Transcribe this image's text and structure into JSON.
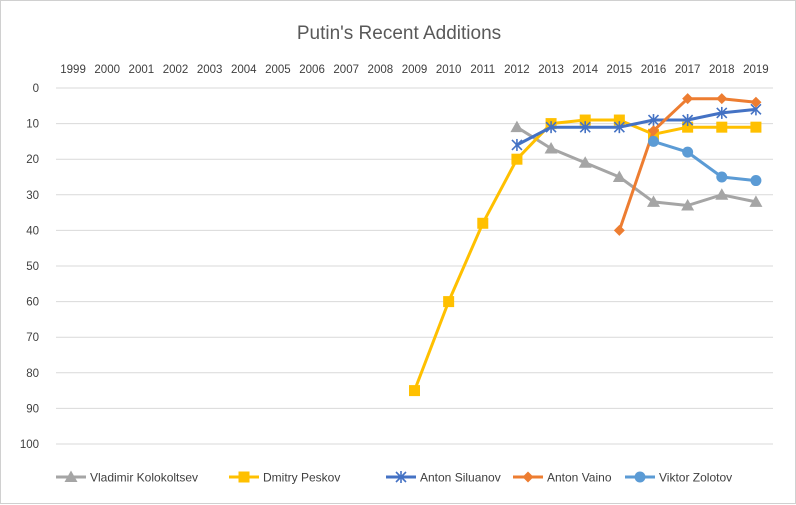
{
  "chart_data": {
    "type": "line",
    "title": "Putin's Recent Additions",
    "x": [
      "1999",
      "2000",
      "2001",
      "2002",
      "2003",
      "2004",
      "2005",
      "2006",
      "2007",
      "2008",
      "2009",
      "2010",
      "2011",
      "2012",
      "2013",
      "2014",
      "2015",
      "2016",
      "2017",
      "2018",
      "2019"
    ],
    "ylim": [
      0,
      100
    ],
    "y_reversed": true,
    "y_ticks": [
      "0",
      "10",
      "20",
      "30",
      "40",
      "50",
      "60",
      "70",
      "80",
      "90",
      "100"
    ],
    "x_axis_position": "top",
    "grid": true,
    "legend_position": "bottom",
    "series": [
      {
        "name": "Vladimir Kolokoltsev",
        "color": "#a5a5a5",
        "marker": "triangle",
        "values": [
          null,
          null,
          null,
          null,
          null,
          null,
          null,
          null,
          null,
          null,
          null,
          null,
          null,
          11,
          17,
          21,
          25,
          32,
          33,
          30,
          32
        ]
      },
      {
        "name": "Dmitry Peskov",
        "color": "#ffc000",
        "marker": "square",
        "values": [
          null,
          null,
          null,
          null,
          null,
          null,
          null,
          null,
          null,
          null,
          85,
          60,
          38,
          20,
          10,
          9,
          9,
          13,
          11,
          11,
          11
        ]
      },
      {
        "name": "Anton Siluanov",
        "color": "#4472c4",
        "marker": "star",
        "values": [
          null,
          null,
          null,
          null,
          null,
          null,
          null,
          null,
          null,
          null,
          null,
          null,
          null,
          16,
          11,
          11,
          11,
          9,
          9,
          7,
          6
        ]
      },
      {
        "name": "Anton Vaino",
        "color": "#ed7d31",
        "marker": "diamond",
        "values": [
          null,
          null,
          null,
          null,
          null,
          null,
          null,
          null,
          null,
          null,
          null,
          null,
          null,
          null,
          null,
          null,
          40,
          12,
          3,
          3,
          4
        ]
      },
      {
        "name": "Viktor Zolotov",
        "color": "#5b9bd5",
        "marker": "circle",
        "values": [
          null,
          null,
          null,
          null,
          null,
          null,
          null,
          null,
          null,
          null,
          null,
          null,
          null,
          null,
          null,
          null,
          null,
          15,
          18,
          25,
          26
        ]
      }
    ]
  }
}
